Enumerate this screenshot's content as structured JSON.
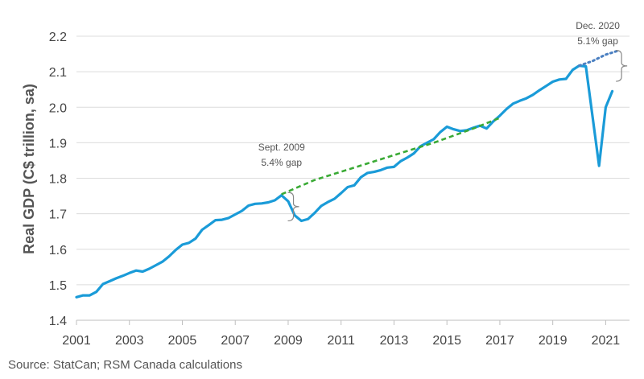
{
  "chart_data": {
    "type": "line",
    "ylabel": "Real GDP (C$ trillion, sa)",
    "xlabel": "",
    "ylim": [
      1.4,
      2.2
    ],
    "xlim": [
      2001,
      2021.9
    ],
    "yticks": [
      "1.4",
      "1.5",
      "1.6",
      "1.7",
      "1.8",
      "1.9",
      "2.0",
      "2.1",
      "2.2"
    ],
    "xticks": [
      "2001",
      "2003",
      "2005",
      "2007",
      "2009",
      "2011",
      "2013",
      "2015",
      "2017",
      "2019",
      "2021"
    ],
    "grid": "horizontal",
    "series": [
      {
        "style": "solid",
        "color": "#1a9bd8",
        "points": [
          [
            2001.0,
            1.465
          ],
          [
            2001.25,
            1.47
          ],
          [
            2001.5,
            1.47
          ],
          [
            2001.75,
            1.48
          ],
          [
            2002.0,
            1.502
          ],
          [
            2002.25,
            1.51
          ],
          [
            2002.5,
            1.518
          ],
          [
            2002.75,
            1.525
          ],
          [
            2003.0,
            1.533
          ],
          [
            2003.25,
            1.54
          ],
          [
            2003.5,
            1.537
          ],
          [
            2003.75,
            1.545
          ],
          [
            2004.0,
            1.555
          ],
          [
            2004.25,
            1.565
          ],
          [
            2004.5,
            1.58
          ],
          [
            2004.75,
            1.598
          ],
          [
            2005.0,
            1.613
          ],
          [
            2005.25,
            1.618
          ],
          [
            2005.5,
            1.63
          ],
          [
            2005.75,
            1.655
          ],
          [
            2006.0,
            1.668
          ],
          [
            2006.25,
            1.682
          ],
          [
            2006.5,
            1.683
          ],
          [
            2006.75,
            1.688
          ],
          [
            2007.0,
            1.698
          ],
          [
            2007.25,
            1.708
          ],
          [
            2007.5,
            1.723
          ],
          [
            2007.75,
            1.728
          ],
          [
            2008.0,
            1.729
          ],
          [
            2008.25,
            1.732
          ],
          [
            2008.5,
            1.738
          ],
          [
            2008.75,
            1.752
          ],
          [
            2009.0,
            1.735
          ],
          [
            2009.25,
            1.695
          ],
          [
            2009.5,
            1.68
          ],
          [
            2009.75,
            1.685
          ],
          [
            2010.0,
            1.702
          ],
          [
            2010.25,
            1.722
          ],
          [
            2010.5,
            1.733
          ],
          [
            2010.75,
            1.742
          ],
          [
            2011.0,
            1.758
          ],
          [
            2011.25,
            1.775
          ],
          [
            2011.5,
            1.78
          ],
          [
            2011.75,
            1.803
          ],
          [
            2012.0,
            1.815
          ],
          [
            2012.25,
            1.818
          ],
          [
            2012.5,
            1.823
          ],
          [
            2012.75,
            1.83
          ],
          [
            2013.0,
            1.832
          ],
          [
            2013.25,
            1.848
          ],
          [
            2013.5,
            1.858
          ],
          [
            2013.75,
            1.87
          ],
          [
            2014.0,
            1.89
          ],
          [
            2014.25,
            1.9
          ],
          [
            2014.5,
            1.91
          ],
          [
            2014.75,
            1.93
          ],
          [
            2015.0,
            1.945
          ],
          [
            2015.25,
            1.938
          ],
          [
            2015.5,
            1.933
          ],
          [
            2015.75,
            1.935
          ],
          [
            2016.0,
            1.942
          ],
          [
            2016.25,
            1.948
          ],
          [
            2016.5,
            1.94
          ],
          [
            2016.75,
            1.96
          ],
          [
            2017.0,
            1.976
          ],
          [
            2017.25,
            1.995
          ],
          [
            2017.5,
            2.01
          ],
          [
            2017.75,
            2.018
          ],
          [
            2018.0,
            2.025
          ],
          [
            2018.25,
            2.035
          ],
          [
            2018.5,
            2.048
          ],
          [
            2018.75,
            2.06
          ],
          [
            2019.0,
            2.072
          ],
          [
            2019.25,
            2.078
          ],
          [
            2019.5,
            2.08
          ],
          [
            2019.75,
            2.105
          ],
          [
            2020.0,
            2.117
          ],
          [
            2020.25,
            2.115
          ],
          [
            2020.5,
            1.975
          ],
          [
            2020.75,
            1.835
          ],
          [
            2021.0,
            2.0
          ],
          [
            2021.25,
            2.045
          ]
        ]
      },
      {
        "style": "dashed",
        "color": "#3aaa35",
        "points": [
          [
            2008.75,
            1.755
          ],
          [
            2010.0,
            1.795
          ],
          [
            2011.5,
            1.83
          ],
          [
            2013.0,
            1.865
          ],
          [
            2014.5,
            1.9
          ],
          [
            2016.0,
            1.94
          ],
          [
            2017.0,
            1.97
          ]
        ]
      },
      {
        "style": "dotted",
        "color": "#4a7fc1",
        "points": [
          [
            2020.0,
            2.117
          ],
          [
            2020.5,
            2.13
          ],
          [
            2021.0,
            2.148
          ],
          [
            2021.5,
            2.16
          ]
        ]
      }
    ],
    "annotations": [
      {
        "lines": [
          "Sept. 2009",
          "5.4% gap"
        ],
        "x": 2009.2,
        "bracket_y": [
          1.68,
          1.76
        ]
      },
      {
        "lines": [
          "Dec. 2020",
          "5.1% gap"
        ],
        "x": 2021.7,
        "bracket_y": [
          2.073,
          2.16
        ]
      }
    ]
  },
  "source": "Source: StatCan; RSM Canada calculations"
}
